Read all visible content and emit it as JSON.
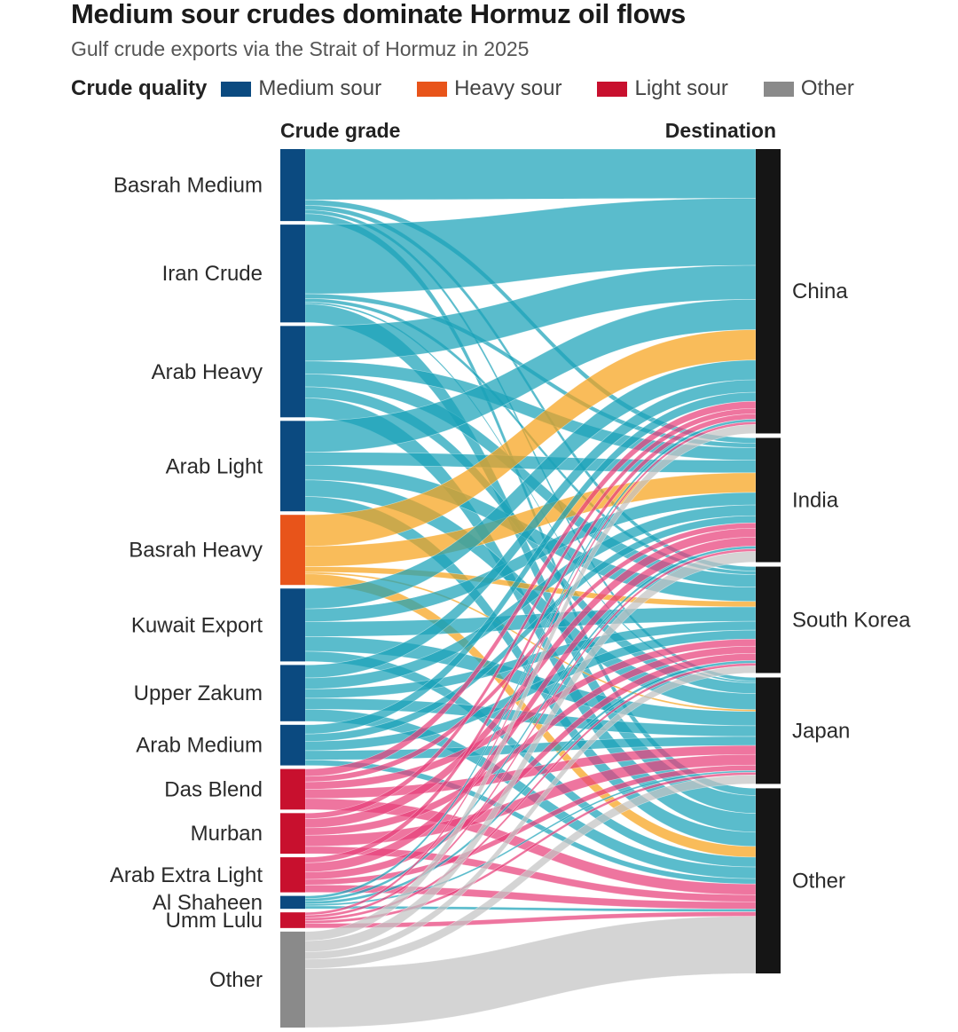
{
  "title": "Medium sour crudes dominate Hormuz oil flows",
  "subtitle": "Gulf crude exports via the Strait of Hormuz in 2025",
  "legend": {
    "title": "Crude quality",
    "items": [
      {
        "label": "Medium sour",
        "color": "#0b4a80"
      },
      {
        "label": "Heavy sour",
        "color": "#e8541a"
      },
      {
        "label": "Light sour",
        "color": "#c8102e"
      },
      {
        "label": "Other",
        "color": "#8a8a8a"
      }
    ]
  },
  "chart_data": {
    "type": "sankey",
    "left_header": "Crude grade",
    "right_header": "Destination",
    "quality_colors": {
      "Medium sour": "#0b4a80",
      "Heavy sour": "#e8541a",
      "Light sour": "#c8102e",
      "Other": "#8a8a8a"
    },
    "flow_colors": {
      "Medium sour": "#1aa2b8",
      "Heavy sour": "#f7a21b",
      "Light sour": "#e8407a",
      "Other": "#c4c4c4"
    },
    "sources": [
      {
        "name": "Basrah Medium",
        "quality": "Medium sour",
        "flows": {
          "China": 55,
          "India": 6,
          "South Korea": 5,
          "Japan": 4,
          "Other": 8
        }
      },
      {
        "name": "Iran Crude",
        "quality": "Medium sour",
        "flows": {
          "China": 75,
          "India": 5,
          "South Korea": 4,
          "Japan": 2,
          "Other": 20
        }
      },
      {
        "name": "Arab Heavy",
        "quality": "Medium sour",
        "flows": {
          "China": 38,
          "India": 14,
          "South Korea": 14,
          "Japan": 12,
          "Other": 21
        }
      },
      {
        "name": "Arab Light",
        "quality": "Medium sour",
        "flows": {
          "China": 34,
          "India": 14,
          "South Korea": 16,
          "Japan": 18,
          "Other": 16
        }
      },
      {
        "name": "Basrah Heavy",
        "quality": "Heavy sour",
        "flows": {
          "China": 34,
          "India": 22,
          "South Korea": 6,
          "Japan": 2,
          "Other": 12
        }
      },
      {
        "name": "Kuwait Export",
        "quality": "Medium sour",
        "flows": {
          "China": 22,
          "India": 14,
          "South Korea": 16,
          "Japan": 16,
          "Other": 11
        }
      },
      {
        "name": "Upper Zakum",
        "quality": "Medium sour",
        "flows": {
          "China": 14,
          "India": 12,
          "South Korea": 10,
          "Japan": 12,
          "Other": 13
        }
      },
      {
        "name": "Arab Medium",
        "quality": "Medium sour",
        "flows": {
          "China": 10,
          "India": 8,
          "South Korea": 10,
          "Japan": 10,
          "Other": 6
        }
      },
      {
        "name": "Das Blend",
        "quality": "Light sour",
        "flows": {
          "China": 8,
          "India": 6,
          "South Korea": 8,
          "Japan": 10,
          "Other": 12
        }
      },
      {
        "name": "Murban",
        "quality": "Light sour",
        "flows": {
          "China": 6,
          "India": 10,
          "South Korea": 8,
          "Japan": 12,
          "Other": 8
        }
      },
      {
        "name": "Arab Extra Light",
        "quality": "Light sour",
        "flows": {
          "China": 6,
          "India": 10,
          "South Korea": 8,
          "Japan": 6,
          "Other": 8
        }
      },
      {
        "name": "Al Shaheen",
        "quality": "Medium sour",
        "flows": {
          "China": 3,
          "India": 3,
          "South Korea": 3,
          "Japan": 2,
          "Other": 3
        }
      },
      {
        "name": "Umm Lulu",
        "quality": "Light sour",
        "flows": {
          "China": 3,
          "India": 3,
          "South Korea": 3,
          "Japan": 3,
          "Other": 5
        }
      },
      {
        "name": "Other",
        "quality": "Other",
        "flows": {
          "China": 10,
          "India": 12,
          "South Korea": 8,
          "Japan": 10,
          "Other": 64
        }
      }
    ],
    "destinations": [
      "China",
      "India",
      "South Korea",
      "Japan",
      "Other"
    ]
  }
}
